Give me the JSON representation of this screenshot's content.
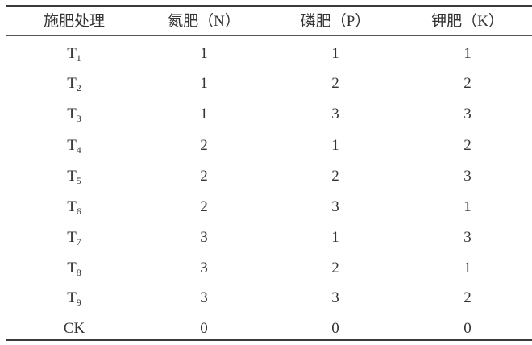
{
  "table": {
    "headers": [
      "施肥处理",
      "氮肥（N）",
      "磷肥（P）",
      "钾肥（K）"
    ],
    "rows": [
      {
        "name": "T",
        "sub": "1",
        "N": "1",
        "P": "1",
        "K": "1"
      },
      {
        "name": "T",
        "sub": "2",
        "N": "1",
        "P": "2",
        "K": "2"
      },
      {
        "name": "T",
        "sub": "3",
        "N": "1",
        "P": "3",
        "K": "3"
      },
      {
        "name": "T",
        "sub": "4",
        "N": "2",
        "P": "1",
        "K": "2"
      },
      {
        "name": "T",
        "sub": "5",
        "N": "2",
        "P": "2",
        "K": "3"
      },
      {
        "name": "T",
        "sub": "6",
        "N": "2",
        "P": "3",
        "K": "1"
      },
      {
        "name": "T",
        "sub": "7",
        "N": "3",
        "P": "1",
        "K": "3"
      },
      {
        "name": "T",
        "sub": "8",
        "N": "3",
        "P": "2",
        "K": "1"
      },
      {
        "name": "T",
        "sub": "9",
        "N": "3",
        "P": "3",
        "K": "2"
      },
      {
        "name": "CK",
        "sub": "",
        "N": "0",
        "P": "0",
        "K": "0"
      }
    ]
  }
}
